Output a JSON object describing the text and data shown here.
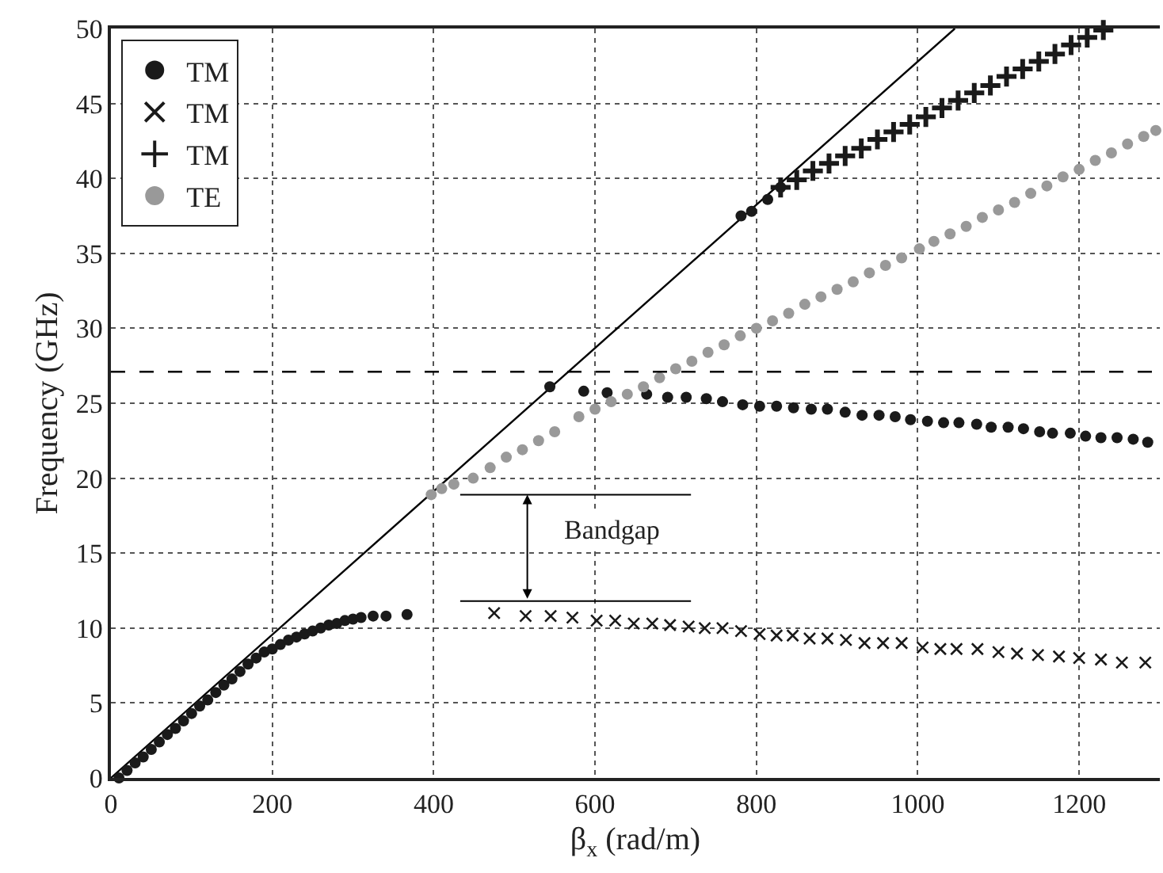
{
  "chart_data": {
    "type": "scatter",
    "xlabel": "β$_{x}$ (rad/m)",
    "ylabel": "Frequency (GHz)",
    "xlim": [
      0,
      1300
    ],
    "ylim": [
      0,
      50
    ],
    "xticks": [
      0,
      200,
      400,
      600,
      800,
      1000,
      1200
    ],
    "yticks": [
      0,
      5,
      10,
      15,
      20,
      25,
      30,
      35,
      40,
      45,
      50
    ],
    "grid": true,
    "legend": "top left",
    "ref_lines": [
      {
        "axis": "y",
        "value": 27.1,
        "color": "#000000",
        "line_style": "dashed"
      },
      {
        "axis": "y",
        "value": 18.9,
        "color": "#000000",
        "line_style": "solid"
      },
      {
        "axis": "y",
        "value": 11.8,
        "color": "#000000",
        "line_style": "solid"
      }
    ],
    "annotations": [
      "Bandgap"
    ],
    "series": [
      {
        "type": "line",
        "color": "#000000",
        "marker": "none",
        "line_style": "solid",
        "x": [
          0,
          1046
        ],
        "values": [
          0,
          50
        ]
      },
      {
        "name": "TM",
        "color": "#1a1a1a",
        "marker": "circle",
        "x": [
          10,
          20,
          30,
          40,
          50,
          60,
          70,
          80,
          90,
          100,
          110,
          120,
          130,
          140,
          150,
          160,
          170,
          180,
          190,
          200,
          210,
          220,
          230,
          240,
          250,
          260,
          270,
          280,
          290,
          300,
          310,
          325,
          341,
          367,
          544,
          586,
          615,
          664,
          690,
          713,
          738,
          758,
          781,
          794,
          814,
          830,
          783,
          804,
          825,
          846,
          868,
          888,
          910,
          931,
          952,
          972,
          991,
          1012,
          1032,
          1051,
          1073,
          1091,
          1112,
          1131,
          1151,
          1167,
          1189,
          1208,
          1227,
          1247,
          1267,
          1285
        ],
        "values": [
          0,
          0.5,
          1.0,
          1.4,
          1.9,
          2.4,
          2.9,
          3.3,
          3.8,
          4.3,
          4.8,
          5.2,
          5.7,
          6.2,
          6.6,
          7.1,
          7.6,
          8.0,
          8.4,
          8.6,
          8.9,
          9.2,
          9.4,
          9.6,
          9.8,
          10.0,
          10.2,
          10.3,
          10.5,
          10.6,
          10.7,
          10.8,
          10.8,
          10.9,
          26.1,
          25.8,
          25.7,
          25.6,
          25.4,
          25.4,
          25.3,
          25.1,
          37.5,
          37.8,
          38.6,
          39.4,
          24.9,
          24.8,
          24.8,
          24.7,
          24.6,
          24.6,
          24.4,
          24.2,
          24.2,
          24.1,
          23.9,
          23.8,
          23.7,
          23.7,
          23.6,
          23.4,
          23.4,
          23.3,
          23.1,
          23.0,
          23.0,
          22.8,
          22.7,
          22.7,
          22.6,
          22.4
        ]
      },
      {
        "name": "TM",
        "color": "#1a1a1a",
        "marker": "x",
        "x": [
          475,
          514,
          545,
          572,
          602,
          625,
          648,
          671,
          693,
          716,
          736,
          758,
          781,
          804,
          825,
          845,
          866,
          888,
          911,
          934,
          957,
          980,
          1006,
          1028,
          1048,
          1074,
          1100,
          1123,
          1149,
          1175,
          1200,
          1227,
          1253,
          1282
        ],
        "values": [
          11.0,
          10.8,
          10.8,
          10.7,
          10.5,
          10.5,
          10.3,
          10.3,
          10.2,
          10.1,
          10.0,
          10.0,
          9.8,
          9.6,
          9.5,
          9.5,
          9.3,
          9.3,
          9.2,
          9.0,
          9.0,
          9.0,
          8.7,
          8.6,
          8.6,
          8.6,
          8.4,
          8.3,
          8.2,
          8.1,
          8.0,
          7.9,
          7.7,
          7.7
        ]
      },
      {
        "name": "TM",
        "color": "#1a1a1a",
        "marker": "cross",
        "x": [
          830,
          850,
          870,
          890,
          910,
          930,
          950,
          970,
          990,
          1010,
          1030,
          1050,
          1070,
          1090,
          1110,
          1130,
          1150,
          1170,
          1190,
          1210,
          1230
        ],
        "values": [
          39.4,
          39.9,
          40.5,
          41.0,
          41.5,
          42.0,
          42.6,
          43.1,
          43.6,
          44.1,
          44.7,
          45.2,
          45.7,
          46.2,
          46.8,
          47.3,
          47.8,
          48.3,
          48.9,
          49.4,
          49.9
        ]
      },
      {
        "name": "TE",
        "color": "#999999",
        "marker": "circle",
        "x": [
          397,
          410,
          425,
          449,
          470,
          490,
          510,
          530,
          550,
          580,
          600,
          620,
          640,
          660,
          680,
          700,
          720,
          740,
          760,
          780,
          800,
          820,
          840,
          860,
          880,
          900,
          920,
          940,
          960,
          980,
          1002,
          1020,
          1040,
          1060,
          1080,
          1100,
          1120,
          1140,
          1160,
          1180,
          1200,
          1220,
          1240,
          1260,
          1280,
          1295
        ],
        "values": [
          18.9,
          19.3,
          19.6,
          20.0,
          20.7,
          21.4,
          21.9,
          22.5,
          23.1,
          24.1,
          24.6,
          25.1,
          25.6,
          26.1,
          26.7,
          27.3,
          27.8,
          28.4,
          28.9,
          29.5,
          30.0,
          30.5,
          31.0,
          31.6,
          32.1,
          32.6,
          33.1,
          33.7,
          34.2,
          34.7,
          35.3,
          35.8,
          36.3,
          36.8,
          37.4,
          37.9,
          38.4,
          39.0,
          39.5,
          40.1,
          40.6,
          41.2,
          41.7,
          42.3,
          42.8,
          43.2
        ]
      }
    ]
  }
}
